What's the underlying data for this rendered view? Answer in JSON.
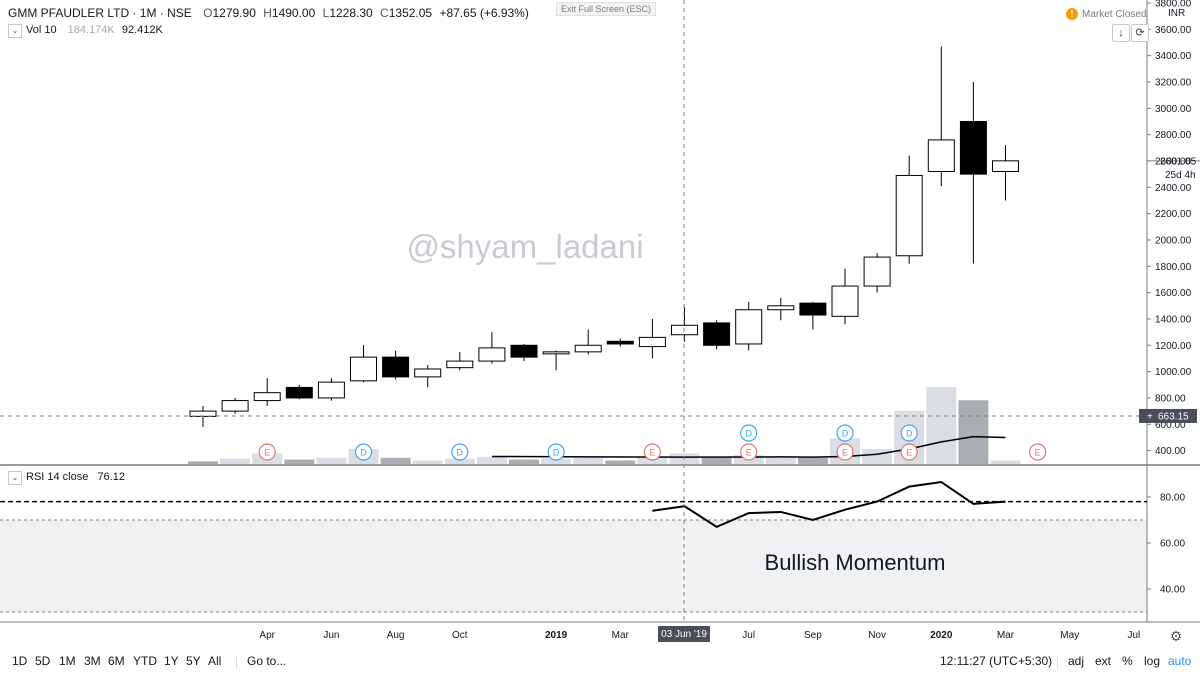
{
  "header": {
    "symbol": "GMM PFAUDLER LTD · 1M · NSE",
    "open_label": "O",
    "open": "1279.90",
    "high_label": "H",
    "high": "1490.00",
    "low_label": "L",
    "low": "1228.30",
    "close_label": "C",
    "close": "1352.05",
    "change": "+87.65 (+6.93%)",
    "exit_fullscreen": "Exit Full Screen (ESC)",
    "market_status": "Market Closed",
    "market_icon": "!",
    "currency": "INR"
  },
  "volume_legend": {
    "label": "Vol 10",
    "value1": "184.174K",
    "value2": "92.412K"
  },
  "rsi_legend": {
    "label": "RSI 14 close",
    "value": "76.12"
  },
  "watermark": "@shyam_ladani",
  "annotation": "Bullish Momentum",
  "crosshair_date": "03 Jun '19",
  "price_tags": {
    "last": "2601.05",
    "countdown": "25d 4h",
    "crosshair": "663.15"
  },
  "timeframes": [
    "1D",
    "5D",
    "1M",
    "3M",
    "6M",
    "YTD",
    "1Y",
    "5Y",
    "All"
  ],
  "goto_label": "Go to...",
  "clock": "12:11:27 (UTC+5:30)",
  "right_controls": [
    "adj",
    "ext",
    "%",
    "log",
    "auto"
  ],
  "colors": {
    "accent": "#2196f3",
    "earnings": "#e57373",
    "dividend": "#42a5f5",
    "market_closed": "#ff9800"
  },
  "chart_data": {
    "type": "candlestick",
    "price_axis_ticks": [
      400,
      600,
      800,
      1000,
      1200,
      1400,
      1600,
      1800,
      2000,
      2200,
      2400,
      2600,
      2800,
      3000,
      3200,
      3400,
      3600,
      3800
    ],
    "price_axis_labels": [
      "400.00",
      "600.00",
      "800.00",
      "1000.00",
      "1200.00",
      "1400.00",
      "1600.00",
      "1800.00",
      "2000.00",
      "2200.00",
      "2400.00",
      "2600.00",
      "2800.00",
      "3000.00",
      "3200.00",
      "3400.00",
      "3600.00",
      "3800.00"
    ],
    "ylim": [
      280,
      3800
    ],
    "x_labels": [
      "Apr",
      "Jun",
      "Aug",
      "Oct",
      "2019",
      "Mar",
      "May",
      "Jul",
      "Sep",
      "Nov",
      "2020",
      "Mar",
      "May",
      "Jul"
    ],
    "x_label_months": [
      2,
      4,
      6,
      8,
      11,
      13,
      15,
      17,
      19,
      21,
      23,
      25,
      27,
      29
    ],
    "candles": [
      {
        "m": 0,
        "o": 660,
        "h": 740,
        "l": 580,
        "c": 700
      },
      {
        "m": 1,
        "o": 700,
        "h": 800,
        "l": 680,
        "c": 780
      },
      {
        "m": 2,
        "o": 780,
        "h": 950,
        "l": 740,
        "c": 840
      },
      {
        "m": 3,
        "o": 880,
        "h": 900,
        "l": 790,
        "c": 800
      },
      {
        "m": 4,
        "o": 800,
        "h": 950,
        "l": 780,
        "c": 920
      },
      {
        "m": 5,
        "o": 930,
        "h": 1200,
        "l": 920,
        "c": 1110
      },
      {
        "m": 6,
        "o": 1110,
        "h": 1160,
        "l": 940,
        "c": 960
      },
      {
        "m": 7,
        "o": 960,
        "h": 1050,
        "l": 880,
        "c": 1020
      },
      {
        "m": 8,
        "o": 1030,
        "h": 1150,
        "l": 1010,
        "c": 1080
      },
      {
        "m": 9,
        "o": 1080,
        "h": 1300,
        "l": 1060,
        "c": 1180
      },
      {
        "m": 10,
        "o": 1200,
        "h": 1210,
        "l": 1080,
        "c": 1110
      },
      {
        "m": 11,
        "o": 1140,
        "h": 1160,
        "l": 1010,
        "c": 1150
      },
      {
        "m": 12,
        "o": 1150,
        "h": 1320,
        "l": 1130,
        "c": 1200
      },
      {
        "m": 13,
        "o": 1230,
        "h": 1250,
        "l": 1190,
        "c": 1210
      },
      {
        "m": 14,
        "o": 1190,
        "h": 1400,
        "l": 1100,
        "c": 1260
      },
      {
        "m": 15,
        "o": 1280,
        "h": 1490,
        "l": 1228,
        "c": 1352
      },
      {
        "m": 16,
        "o": 1370,
        "h": 1390,
        "l": 1170,
        "c": 1200
      },
      {
        "m": 17,
        "o": 1210,
        "h": 1530,
        "l": 1160,
        "c": 1470
      },
      {
        "m": 18,
        "o": 1470,
        "h": 1560,
        "l": 1390,
        "c": 1500
      },
      {
        "m": 19,
        "o": 1520,
        "h": 1530,
        "l": 1320,
        "c": 1430
      },
      {
        "m": 20,
        "o": 1420,
        "h": 1780,
        "l": 1360,
        "c": 1650
      },
      {
        "m": 21,
        "o": 1650,
        "h": 1900,
        "l": 1600,
        "c": 1870
      },
      {
        "m": 22,
        "o": 1880,
        "h": 2640,
        "l": 1820,
        "c": 2490
      },
      {
        "m": 23,
        "o": 2520,
        "h": 3470,
        "l": 2410,
        "c": 2760
      },
      {
        "m": 24,
        "o": 2900,
        "h": 3200,
        "l": 1820,
        "c": 2500
      },
      {
        "m": 25,
        "o": 2520,
        "h": 2720,
        "l": 2300,
        "c": 2601
      }
    ],
    "volume_max": 1300,
    "volume": [
      {
        "m": 0,
        "v": 30,
        "up": false
      },
      {
        "m": 1,
        "v": 60,
        "up": true
      },
      {
        "m": 2,
        "v": 120,
        "up": true
      },
      {
        "m": 3,
        "v": 50,
        "up": false
      },
      {
        "m": 4,
        "v": 70,
        "up": true
      },
      {
        "m": 5,
        "v": 170,
        "up": true
      },
      {
        "m": 6,
        "v": 70,
        "up": false
      },
      {
        "m": 7,
        "v": 40,
        "up": true
      },
      {
        "m": 8,
        "v": 60,
        "up": true
      },
      {
        "m": 9,
        "v": 80,
        "up": true
      },
      {
        "m": 10,
        "v": 50,
        "up": false
      },
      {
        "m": 11,
        "v": 60,
        "up": true
      },
      {
        "m": 12,
        "v": 70,
        "up": true
      },
      {
        "m": 13,
        "v": 40,
        "up": false
      },
      {
        "m": 14,
        "v": 70,
        "up": true
      },
      {
        "m": 15,
        "v": 120,
        "up": true
      },
      {
        "m": 16,
        "v": 70,
        "up": false
      },
      {
        "m": 17,
        "v": 100,
        "up": true
      },
      {
        "m": 18,
        "v": 70,
        "up": true
      },
      {
        "m": 19,
        "v": 70,
        "up": false
      },
      {
        "m": 20,
        "v": 290,
        "up": true
      },
      {
        "m": 21,
        "v": 170,
        "up": true
      },
      {
        "m": 22,
        "v": 600,
        "up": true
      },
      {
        "m": 23,
        "v": 870,
        "up": true
      },
      {
        "m": 24,
        "v": 720,
        "up": false
      },
      {
        "m": 25,
        "v": 40,
        "up": true
      }
    ],
    "volume_ma": [
      {
        "m": 9,
        "v": 85
      },
      {
        "m": 12,
        "v": 80
      },
      {
        "m": 15,
        "v": 78
      },
      {
        "m": 18,
        "v": 80
      },
      {
        "m": 19,
        "v": 78
      },
      {
        "m": 20,
        "v": 85
      },
      {
        "m": 21,
        "v": 110
      },
      {
        "m": 22,
        "v": 170
      },
      {
        "m": 23,
        "v": 250
      },
      {
        "m": 24,
        "v": 310
      },
      {
        "m": 25,
        "v": 300
      }
    ],
    "events": [
      {
        "m": 2,
        "type": "E"
      },
      {
        "m": 5,
        "type": "D"
      },
      {
        "m": 8,
        "type": "D"
      },
      {
        "m": 11,
        "type": "D"
      },
      {
        "m": 14,
        "type": "E"
      },
      {
        "m": 17,
        "type": "E"
      },
      {
        "m": 17,
        "type": "D",
        "raised": true
      },
      {
        "m": 20,
        "type": "E"
      },
      {
        "m": 20,
        "type": "D",
        "raised": true
      },
      {
        "m": 22,
        "type": "E"
      },
      {
        "m": 22,
        "type": "D",
        "raised": true
      },
      {
        "m": 26,
        "type": "E"
      }
    ],
    "rsi": {
      "ticks": [
        40,
        60,
        80
      ],
      "tick_labels": [
        "40.00",
        "60.00",
        "80.00"
      ],
      "ylim": [
        27,
        87
      ],
      "upper_band": 70,
      "lower_band": 30,
      "level_line": 78,
      "values": [
        {
          "m": 14,
          "v": 74
        },
        {
          "m": 15,
          "v": 76
        },
        {
          "m": 16,
          "v": 67
        },
        {
          "m": 17,
          "v": 73
        },
        {
          "m": 18,
          "v": 73.5
        },
        {
          "m": 19,
          "v": 70
        },
        {
          "m": 20,
          "v": 74.5
        },
        {
          "m": 21,
          "v": 78
        },
        {
          "m": 22,
          "v": 84.5
        },
        {
          "m": 23,
          "v": 86.5
        },
        {
          "m": 24,
          "v": 77
        },
        {
          "m": 25,
          "v": 78
        }
      ]
    }
  }
}
